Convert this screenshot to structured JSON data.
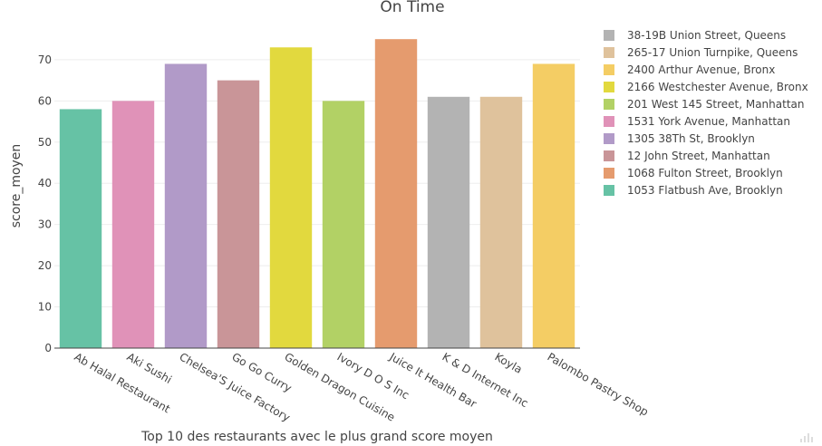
{
  "chart_data": {
    "type": "bar",
    "title": "On Time",
    "xlabel": "Top 10 des  restaurants avec le plus grand score moyen",
    "ylabel": "score_moyen",
    "ylim": [
      0,
      79
    ],
    "yticks": [
      0,
      10,
      20,
      30,
      40,
      50,
      60,
      70
    ],
    "grid": true,
    "legend_position": "top-right",
    "categories": [
      "Ab Halal Restaurant",
      "Aki Sushi",
      "Chelsea'S Juice Factory",
      "Go Go Curry",
      "Golden Dragon Cuisine",
      "Ivory D O S  Inc",
      "Juice It Health Bar",
      "K & D Internet Inc",
      "Koyla",
      "Palombo Pastry Shop"
    ],
    "series": [
      {
        "name": "1053 Flatbush Ave, Brooklyn",
        "color": "#66c2a5",
        "category": "Ab Halal Restaurant",
        "value": 58
      },
      {
        "name": "1531 York Avenue, Manhattan",
        "color": "#e092b8",
        "category": "Aki Sushi",
        "value": 60
      },
      {
        "name": "1305 38Th St, Brooklyn",
        "color": "#b19ac8",
        "category": "Chelsea'S Juice Factory",
        "value": 69
      },
      {
        "name": "12 John Street, Manhattan",
        "color": "#c99598",
        "category": "Go Go Curry",
        "value": 65
      },
      {
        "name": "2166 Westchester Avenue, Bronx",
        "color": "#e2d93e",
        "category": "Golden Dragon Cuisine",
        "value": 73
      },
      {
        "name": "201 West  145 Street, Manhattan",
        "color": "#b2d165",
        "category": "Ivory D O S  Inc",
        "value": 60
      },
      {
        "name": "1068 Fulton Street, Brooklyn",
        "color": "#e59b6e",
        "category": "Juice It Health Bar",
        "value": 75
      },
      {
        "name": "38-19B Union Street, Queens",
        "color": "#b3b3b3",
        "category": "K & D Internet Inc",
        "value": 61
      },
      {
        "name": "265-17 Union Turnpike, Queens",
        "color": "#dfc29c",
        "category": "Koyla",
        "value": 61
      },
      {
        "name": "2400 Arthur Avenue, Bronx",
        "color": "#f4cd64",
        "category": "Palombo Pastry Shop",
        "value": 69
      }
    ],
    "legend_order": [
      "38-19B Union Street, Queens",
      "265-17 Union Turnpike, Queens",
      "2400 Arthur Avenue, Bronx",
      "2166 Westchester Avenue, Bronx",
      "201 West  145 Street, Manhattan",
      "1531 York Avenue, Manhattan",
      "1305 38Th St, Brooklyn",
      "12 John Street, Manhattan",
      "1068 Fulton Street, Brooklyn",
      "1053 Flatbush Ave, Brooklyn"
    ]
  }
}
